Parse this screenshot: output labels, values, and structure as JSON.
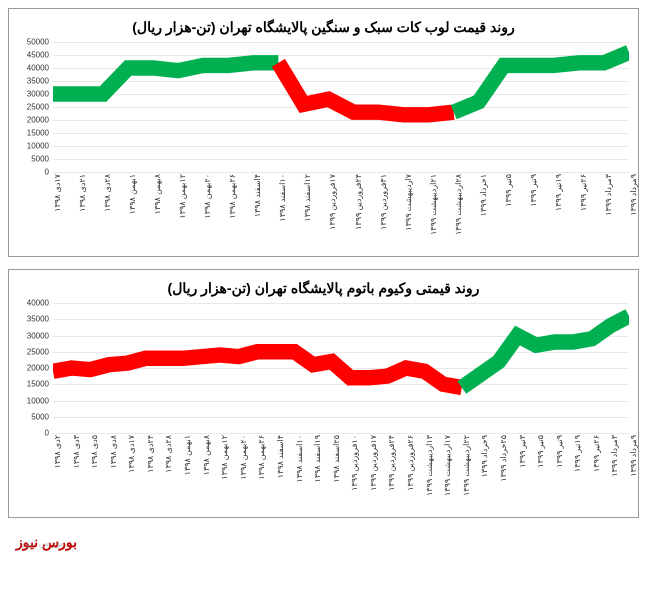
{
  "charts": [
    {
      "title": "روند قیمت لوب کات سبک و سنگین پالایشگاه تهران (تن-هزار ریال)",
      "type": "line",
      "ylim": [
        0,
        50000
      ],
      "ytick_step": 5000,
      "yticks": [
        0,
        5000,
        10000,
        15000,
        20000,
        25000,
        30000,
        35000,
        40000,
        45000,
        50000
      ],
      "background_color": "#ffffff",
      "grid_color": "#e8e8e8",
      "title_fontsize": 14,
      "label_fontsize": 8,
      "line_width": 2,
      "categories": [
        "۱۷دی ۱۳۹۸",
        "۲۱دی ۱۳۹۸",
        "۲۸دی ۱۳۹۸",
        "۱بهمن ۱۳۹۸",
        "۸بهمن ۱۳۹۸",
        "۱۲بهمن ۱۳۹۸",
        "۲۰بهمن ۱۳۹۸",
        "۲۶بهمن ۱۳۹۸",
        "۴اسفند ۱۳۹۸",
        "۱۰اسفند ۱۳۹۸",
        "۱۲اسفند ۱۳۹۸",
        "۱۷فروردین ۱۳۹۹",
        "۲۴فروردین ۱۳۹۹",
        "۳۱فروردین ۱۳۹۹",
        "۷اردیبهشت ۱۳۹۹",
        "۲۱اردیبهشت ۱۳۹۹",
        "۲۸اردیبهشت ۱۳۹۹",
        "۱خرداد ۱۳۹۹",
        "۵تیر ۱۳۹۹",
        "۹تیر ۱۳۹۹",
        "۱۹تیر ۱۳۹۹",
        "۲۶تیر ۱۳۹۹",
        "۳مرداد ۱۳۹۹",
        "۹مرداد ۱۳۹۹"
      ],
      "series": [
        {
          "name": "green-pre",
          "color": "#00b050",
          "values": [
            30000,
            30000,
            30000,
            40000,
            40000,
            39000,
            41000,
            41000,
            42000,
            42000,
            null,
            null,
            null,
            null,
            null,
            null,
            null,
            null,
            null,
            null,
            null,
            null,
            null,
            null
          ]
        },
        {
          "name": "red",
          "color": "#ff0000",
          "values": [
            null,
            null,
            null,
            null,
            null,
            null,
            null,
            null,
            null,
            42000,
            26000,
            28000,
            23000,
            23000,
            22000,
            22000,
            23000,
            null,
            null,
            null,
            null,
            null,
            null,
            null
          ]
        },
        {
          "name": "green-post",
          "color": "#00b050",
          "values": [
            null,
            null,
            null,
            null,
            null,
            null,
            null,
            null,
            null,
            null,
            null,
            null,
            null,
            null,
            null,
            null,
            23000,
            27000,
            41000,
            41000,
            41000,
            42000,
            42000,
            46000
          ]
        }
      ],
      "arrow": {
        "from_idx": 16,
        "to_idx": 16,
        "y": 23000,
        "color": "#ff0000"
      }
    },
    {
      "title": "روند قیمتی وکیوم باتوم پالایشگاه تهران (تن-هزار ریال)",
      "type": "line",
      "ylim": [
        0,
        40000
      ],
      "ytick_step": 5000,
      "yticks": [
        0,
        5000,
        10000,
        15000,
        20000,
        25000,
        30000,
        35000,
        40000
      ],
      "background_color": "#ffffff",
      "grid_color": "#e8e8e8",
      "title_fontsize": 14,
      "label_fontsize": 8,
      "line_width": 2,
      "categories": [
        "۲دی ۱۳۹۸",
        "۳دی ۱۳۹۸",
        "۵دی ۱۳۹۸",
        "۸دی ۱۳۹۸",
        "۱۷دی ۱۳۹۸",
        "۲۴دی ۱۳۹۸",
        "۲۸دی ۱۳۹۸",
        "۱بهمن ۱۳۹۸",
        "۸بهمن ۱۳۹۸",
        "۱۲بهمن ۱۳۹۸",
        "۲۰بهمن ۱۳۹۸",
        "۲۶بهمن ۱۳۹۸",
        "۴اسفند ۱۳۹۸",
        "۱۰اسفند ۱۳۹۸",
        "۱۹اسفند ۱۳۹۸",
        "۲۵اسفند ۱۳۹۸",
        "۱۰فروردین ۱۳۹۹",
        "۱۷فروردین ۱۳۹۹",
        "۲۴فروردین ۱۳۹۹",
        "۲۶فروردین ۱۳۹۹",
        "۱۳اردیبهشت ۱۳۹۹",
        "۱۷اردیبهشت ۱۳۹۹",
        "۲۲اردیبهشت ۱۳۹۹",
        "۹خرداد ۱۳۹۹",
        "۲۵خرداد ۱۳۹۹",
        "۳تیر ۱۳۹۹",
        "۵تیر ۱۳۹۹",
        "۹تیر ۱۳۹۹",
        "۱۹تیر ۱۳۹۹",
        "۲۶تیر ۱۳۹۹",
        "۳مرداد ۱۳۹۹",
        "۹مرداد ۱۳۹۹"
      ],
      "series": [
        {
          "name": "red",
          "color": "#ff0000",
          "values": [
            19000,
            20000,
            19500,
            21000,
            21500,
            23000,
            23000,
            23000,
            23500,
            24000,
            23500,
            25000,
            25000,
            25000,
            21000,
            22000,
            17000,
            17000,
            17500,
            20000,
            19000,
            15000,
            14000,
            null,
            null,
            null,
            null,
            null,
            null,
            null,
            null,
            null
          ]
        },
        {
          "name": "green",
          "color": "#00b050",
          "values": [
            null,
            null,
            null,
            null,
            null,
            null,
            null,
            null,
            null,
            null,
            null,
            null,
            null,
            null,
            null,
            null,
            null,
            null,
            null,
            null,
            null,
            null,
            14000,
            18000,
            22000,
            30000,
            27000,
            28000,
            28000,
            29000,
            33000,
            36000
          ]
        }
      ]
    }
  ],
  "footer": "بورس نیوز",
  "watermark": "بورس نیوز"
}
